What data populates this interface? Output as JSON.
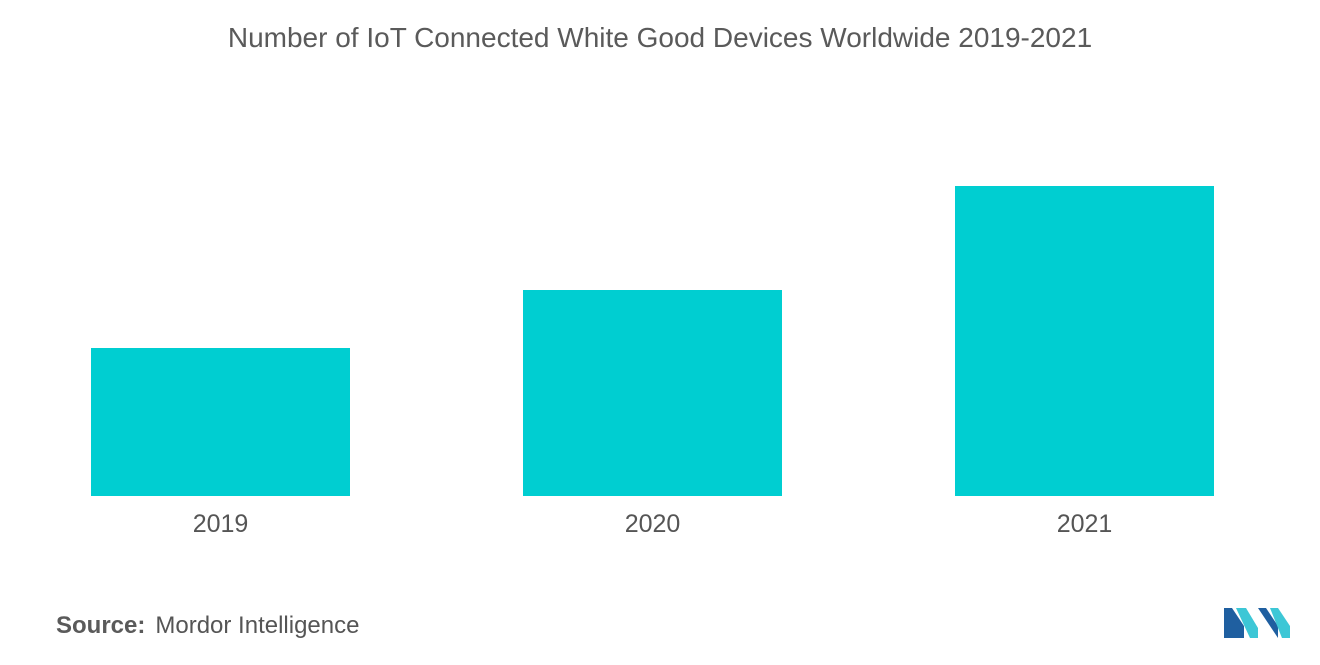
{
  "chart_data": {
    "type": "bar",
    "title": "Number of IoT Connected White Good Devices Worldwide 2019-2021",
    "categories": [
      "2019",
      "2020",
      "2021"
    ],
    "values": [
      148,
      206,
      310
    ],
    "ylim": [
      0,
      340
    ],
    "grid": false,
    "legend": "none",
    "bar_color": "#00ced1"
  },
  "source": {
    "label": "Source:",
    "text": "Mordor Intelligence"
  },
  "logo": {
    "icon": "mordor-intelligence-logo-icon",
    "color_dark": "#1f5fa0",
    "color_light": "#3dc7d6"
  }
}
